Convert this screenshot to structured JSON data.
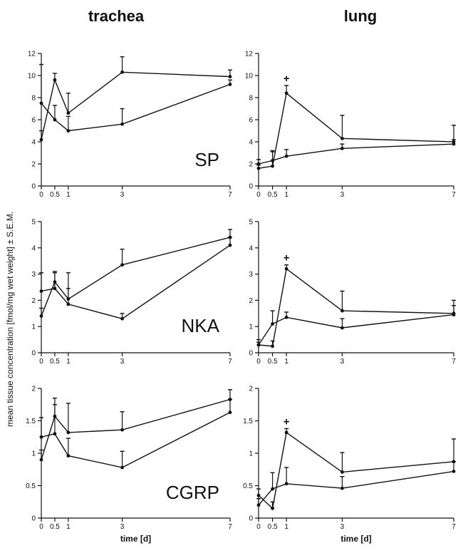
{
  "figure": {
    "columns": [
      "trachea",
      "lung"
    ],
    "ylabel": "mean tissue concentration [fmol/mg wet weight] ± S.E.M.",
    "xlabel": "time [d]"
  },
  "chart_data": [
    {
      "type": "line",
      "tissue": "trachea",
      "panel_label": "SP",
      "x": [
        0,
        0.5,
        1,
        3,
        7
      ],
      "x_ticks": [
        "0",
        "0.5",
        "1",
        "3",
        "7"
      ],
      "xlim": [
        0,
        7
      ],
      "ylim": [
        0,
        12
      ],
      "yticks": [
        0,
        2,
        4,
        6,
        8,
        10,
        12
      ],
      "xlabel": "",
      "ylabel": "",
      "significance": [],
      "series": [
        {
          "values": [
            4.2,
            9.6,
            6.6,
            10.3,
            9.9
          ],
          "errors": [
            0.8,
            0.6,
            1.8,
            1.4,
            0.6
          ]
        },
        {
          "values": [
            7.5,
            6.0,
            5.0,
            5.6,
            9.2
          ],
          "errors": [
            3.5,
            1.3,
            1.3,
            1.4,
            0.4
          ]
        }
      ]
    },
    {
      "type": "line",
      "tissue": "lung",
      "panel_label": "",
      "x": [
        0,
        0.5,
        1,
        3,
        7
      ],
      "x_ticks": [
        "0",
        "0.5",
        "1",
        "3",
        "7"
      ],
      "xlim": [
        0,
        7
      ],
      "ylim": [
        0,
        12
      ],
      "yticks": [
        0,
        2,
        4,
        6,
        8,
        10,
        12
      ],
      "xlabel": "",
      "ylabel": "",
      "significance": [
        {
          "x": 1,
          "label": "+"
        }
      ],
      "series": [
        {
          "values": [
            1.6,
            1.8,
            8.4,
            4.3,
            4.0
          ],
          "errors": [
            0.3,
            1.4,
            0.7,
            2.1,
            1.5
          ]
        },
        {
          "values": [
            2.0,
            2.3,
            2.7,
            3.4,
            3.8
          ],
          "errors": [
            0.4,
            0.8,
            0.6,
            0.4,
            0.4
          ]
        }
      ]
    },
    {
      "type": "line",
      "tissue": "trachea",
      "panel_label": "NKA",
      "x": [
        0,
        0.5,
        1,
        3,
        7
      ],
      "x_ticks": [
        "0",
        "0.5",
        "1",
        "3",
        "7"
      ],
      "xlim": [
        0,
        7
      ],
      "ylim": [
        0,
        5
      ],
      "yticks": [
        0,
        1,
        2,
        3,
        4,
        5
      ],
      "xlabel": "",
      "ylabel": "",
      "significance": [],
      "series": [
        {
          "values": [
            1.4,
            2.7,
            2.05,
            3.35,
            4.4
          ],
          "errors": [
            0.3,
            0.4,
            1.0,
            0.6,
            0.3
          ]
        },
        {
          "values": [
            2.35,
            2.45,
            1.85,
            1.3,
            4.1
          ],
          "errors": [
            0.7,
            0.6,
            0.6,
            0.2,
            0.3
          ]
        }
      ]
    },
    {
      "type": "line",
      "tissue": "lung",
      "panel_label": "",
      "x": [
        0,
        0.5,
        1,
        3,
        7
      ],
      "x_ticks": [
        "0",
        "0.5",
        "1",
        "3",
        "7"
      ],
      "xlim": [
        0,
        7
      ],
      "ylim": [
        0,
        5
      ],
      "yticks": [
        0,
        1,
        2,
        3,
        4,
        5
      ],
      "xlabel": "",
      "ylabel": "",
      "significance": [
        {
          "x": 1,
          "label": "+"
        }
      ],
      "series": [
        {
          "values": [
            0.3,
            0.25,
            3.2,
            1.6,
            1.5
          ],
          "errors": [
            0.1,
            0.2,
            0.15,
            0.75,
            0.5
          ]
        },
        {
          "values": [
            0.3,
            1.1,
            1.35,
            0.95,
            1.45
          ],
          "errors": [
            0.2,
            0.5,
            0.2,
            0.35,
            0.35
          ]
        }
      ]
    },
    {
      "type": "line",
      "tissue": "trachea",
      "panel_label": "CGRP",
      "x": [
        0,
        0.5,
        1,
        3,
        7
      ],
      "x_ticks": [
        "0",
        "0.5",
        "1",
        "3",
        "7"
      ],
      "xlim": [
        0,
        7
      ],
      "ylim": [
        0,
        2
      ],
      "yticks": [
        0,
        0.5,
        1,
        1.5,
        2
      ],
      "ytick_labels": [
        "0",
        "0.5",
        "1",
        "1.5",
        "2"
      ],
      "xlabel": "time [d]",
      "ylabel": "",
      "significance": [],
      "series": [
        {
          "values": [
            0.9,
            1.57,
            1.32,
            1.36,
            1.83
          ],
          "errors": [
            0.15,
            0.28,
            0.45,
            0.28,
            0.15
          ]
        },
        {
          "values": [
            1.25,
            1.3,
            0.96,
            0.78,
            1.63
          ],
          "errors": [
            0.3,
            0.45,
            0.27,
            0.25,
            0.2
          ]
        }
      ]
    },
    {
      "type": "line",
      "tissue": "lung",
      "panel_label": "",
      "x": [
        0,
        0.5,
        1,
        3,
        7
      ],
      "x_ticks": [
        "0",
        "0.5",
        "1",
        "3",
        "7"
      ],
      "xlim": [
        0,
        7
      ],
      "ylim": [
        0,
        2
      ],
      "yticks": [
        0,
        0.5,
        1,
        1.5,
        2
      ],
      "ytick_labels": [
        "0",
        "0.5",
        "1",
        "1.5",
        "2"
      ],
      "xlabel": "time [d]",
      "ylabel": "",
      "significance": [
        {
          "x": 1,
          "label": "+"
        }
      ],
      "series": [
        {
          "values": [
            0.35,
            0.15,
            1.32,
            0.71,
            0.87
          ],
          "errors": [
            0.1,
            0.1,
            0.06,
            0.3,
            0.35
          ]
        },
        {
          "values": [
            0.2,
            0.45,
            0.53,
            0.46,
            0.72
          ],
          "errors": [
            0.1,
            0.25,
            0.25,
            0.18,
            0.15
          ]
        }
      ]
    }
  ]
}
